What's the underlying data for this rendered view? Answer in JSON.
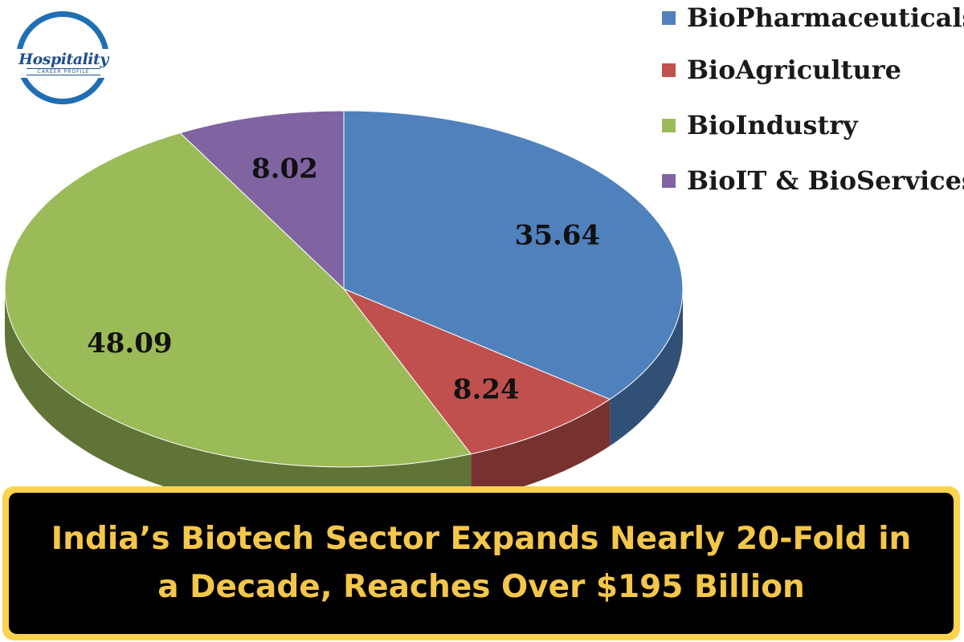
{
  "logo": {
    "wordmark": "Hospitality",
    "tagline": "CAREER PROFILE"
  },
  "headline": "India’s Biotech Sector Expands Nearly 20-Fold in a Decade, Reaches Over $195 Billion",
  "chart_data": {
    "type": "pie",
    "style": "3d",
    "legend_position": "top-right",
    "categories": [
      "BioPharmaceuticals",
      "BioAgriculture",
      "BioIndustry",
      "BioIT & BioServices"
    ],
    "values": [
      35.64,
      8.24,
      48.09,
      8.02
    ],
    "value_labels": [
      "35.64",
      "8.24",
      "48.09",
      "8.02"
    ],
    "colors": [
      "#4f81bd",
      "#c0504d",
      "#9bbb59",
      "#8064a2"
    ]
  }
}
